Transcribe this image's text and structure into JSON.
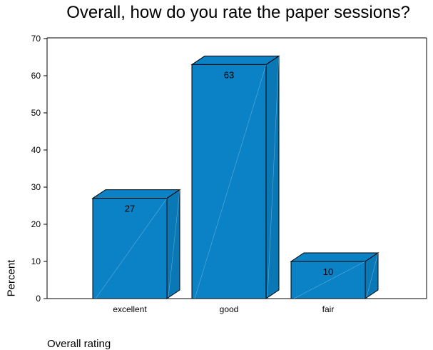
{
  "chart_data": {
    "type": "bar",
    "title": "Overall, how do you rate the paper sessions?",
    "xlabel": "Overall rating",
    "ylabel": "Percent",
    "categories": [
      "excellent",
      "good",
      "fair"
    ],
    "values": [
      27,
      63,
      10
    ],
    "data_labels": [
      "27",
      "63",
      "10"
    ],
    "ylim": [
      0,
      70
    ],
    "yticks": [
      "0",
      "10",
      "20",
      "30",
      "40",
      "50",
      "60",
      "70"
    ],
    "grid": false,
    "legend": "none",
    "style": "3d",
    "bar_color": "#0A82C5"
  }
}
